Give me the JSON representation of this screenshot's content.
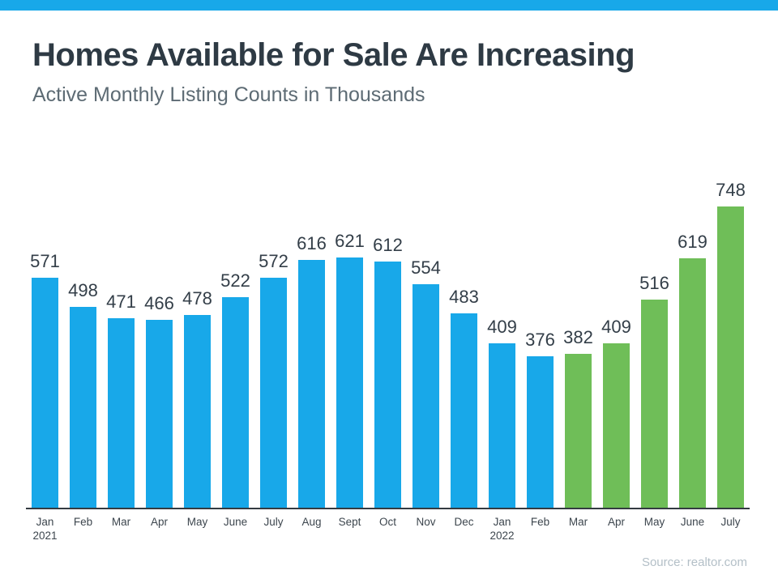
{
  "page": {
    "accent_color": "#18a8e9"
  },
  "header": {
    "title": "Homes Available for Sale Are Increasing",
    "subtitle": "Active Monthly Listing Counts in Thousands"
  },
  "chart_data": {
    "type": "bar",
    "title": "Homes Available for Sale Are Increasing",
    "subtitle": "Active Monthly Listing Counts in Thousands",
    "categories": [
      "Jan 2021",
      "Feb",
      "Mar",
      "Apr",
      "May",
      "June",
      "July",
      "Aug",
      "Sept",
      "Oct",
      "Nov",
      "Dec",
      "Jan 2022",
      "Feb",
      "Mar",
      "Apr",
      "May",
      "June",
      "July"
    ],
    "values": [
      571,
      498,
      471,
      466,
      478,
      522,
      572,
      616,
      621,
      612,
      554,
      483,
      409,
      376,
      382,
      409,
      516,
      619,
      748
    ],
    "bar_colors": [
      "#18a8e9",
      "#18a8e9",
      "#18a8e9",
      "#18a8e9",
      "#18a8e9",
      "#18a8e9",
      "#18a8e9",
      "#18a8e9",
      "#18a8e9",
      "#18a8e9",
      "#18a8e9",
      "#18a8e9",
      "#18a8e9",
      "#18a8e9",
      "#6fbe58",
      "#6fbe58",
      "#6fbe58",
      "#6fbe58",
      "#6fbe58"
    ],
    "color_legend": {
      "blue": "Jan 2021 - Feb 2022",
      "green": "Mar 2022 - July 2022"
    },
    "xlabel": "",
    "ylabel": "",
    "ylim": [
      0,
      780
    ],
    "grid": false,
    "y_axis_shown": false,
    "value_labels": true,
    "legend_position": "none"
  },
  "footer": {
    "source": "Source: realtor.com"
  }
}
